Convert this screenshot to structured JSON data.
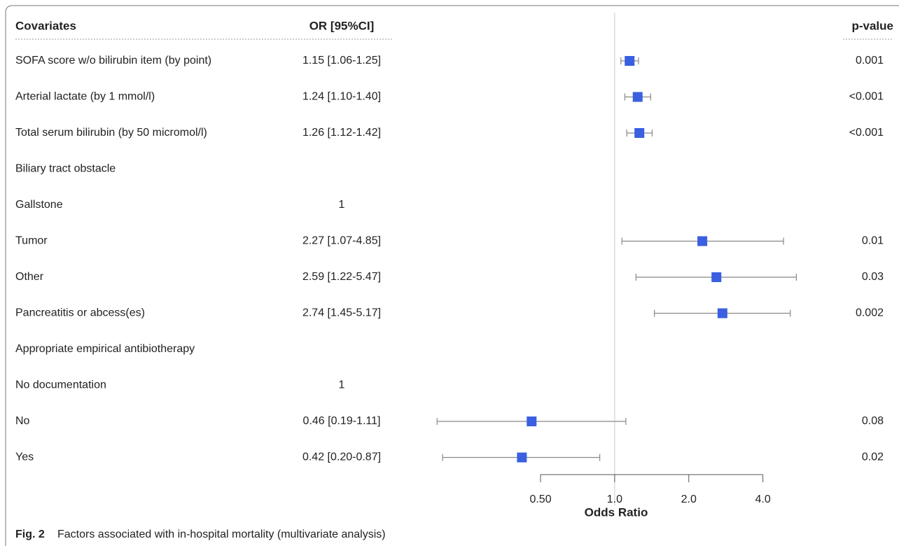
{
  "chart_data": {
    "type": "forest",
    "headers": {
      "label": "Covariates",
      "estimate": "OR [95%CI]",
      "p": "p-value"
    },
    "rows": [
      "SOFA score w/o bilirubin item (by point)",
      "Arterial lactate (by 1 mmol/l)",
      "Total serum bilirubin (by 50 micromol/l)",
      "Biliary tract obstacle",
      "Gallstone",
      "Tumor",
      "Other",
      "Pancreatitis or abcess(es)",
      "Appropriate empirical antibiotherapy",
      "No documentation",
      "No",
      "Yes"
    ],
    "values": [
      1.15,
      1.24,
      1.26,
      null,
      null,
      2.27,
      2.59,
      2.74,
      null,
      null,
      0.46,
      0.42
    ],
    "lower": [
      1.06,
      1.1,
      1.12,
      null,
      null,
      1.07,
      1.22,
      1.45,
      null,
      null,
      0.19,
      0.2
    ],
    "upper": [
      1.25,
      1.4,
      1.42,
      null,
      null,
      4.85,
      5.47,
      5.17,
      null,
      null,
      1.11,
      0.87
    ],
    "value_labels": [
      "1.15 [1.06-1.25]",
      "1.24 [1.10-1.40]",
      "1.26 [1.12-1.42]",
      null,
      "1",
      "2.27 [1.07-4.85]",
      "2.59 [1.22-5.47]",
      "2.74 [1.45-5.17]",
      null,
      "1",
      "0.46 [0.19-1.11]",
      "0.42 [0.20-0.87]"
    ],
    "p_values": [
      "0.001",
      "<0.001",
      "<0.001",
      null,
      null,
      "0.01",
      "0.03",
      "0.002",
      null,
      null,
      "0.08",
      "0.02"
    ],
    "x_label": "Odds Ratio",
    "x_scale": "log",
    "xlim": [
      0.18,
      5.6
    ],
    "xticks": [
      {
        "value": 0.5,
        "label": "0.50"
      },
      {
        "value": 1,
        "label": "1.0"
      },
      {
        "value": 2,
        "label": "2.0"
      },
      {
        "value": 4,
        "label": "4.0"
      }
    ],
    "reference_line": 1,
    "color": "#3a5fe0",
    "whisker_color": "#888888",
    "caption": {
      "label": "Fig. 2",
      "text": "Factors associated with in-hospital mortality (multivariate analysis)"
    }
  }
}
